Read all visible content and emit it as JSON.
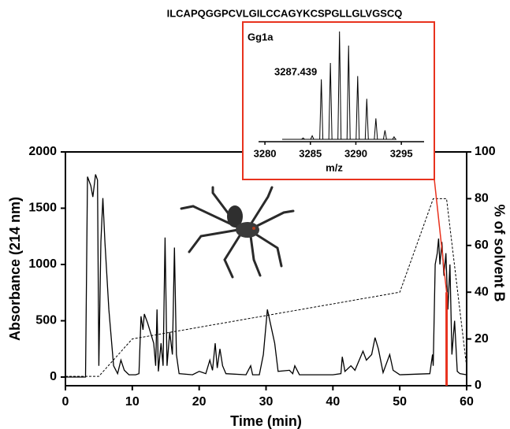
{
  "chart_data": [
    {
      "type": "line",
      "title": "ILCAPQGGPCVLGILCCAGYKCSPGLLGLVGSCQ",
      "x_label": "Time (min)",
      "y_label": "Absorbance (214 nm)",
      "y2_label": "% of solvent B",
      "xlim": [
        0,
        60
      ],
      "xticks": [
        0,
        10,
        20,
        30,
        40,
        50,
        60
      ],
      "ylim": [
        -77,
        2000
      ],
      "yticks": [
        0,
        500,
        1000,
        1500,
        2000
      ],
      "y2lim": [
        0,
        100
      ],
      "y2ticks": [
        0,
        20,
        40,
        60,
        80,
        100
      ],
      "highlight_x": 57,
      "highlight_color": "#e8321e",
      "series": [
        {
          "color": "#000000",
          "dashed": false,
          "x": [
            0,
            3,
            3.3,
            3.8,
            4.1,
            4.5,
            4.8,
            5.0,
            5.3,
            5.6,
            5.9,
            6.5,
            7.2,
            7.8,
            8.3,
            8.8,
            9.5,
            10.5,
            11.0,
            11.3,
            11.6,
            11.8,
            12.3,
            12.8,
            13.2,
            13.5,
            13.7,
            13.9,
            14.3,
            14.6,
            14.9,
            15.2,
            15.6,
            16.0,
            16.3,
            16.6,
            17.0,
            19,
            20,
            21,
            21.6,
            22,
            22.4,
            22.7,
            23.1,
            23.5,
            24,
            27,
            27.7,
            28,
            29,
            29.6,
            30.2,
            31.3,
            31.8,
            33.5,
            34,
            34.3,
            35,
            40,
            41.2,
            41.4,
            41.8,
            42.7,
            43.3,
            44.5,
            45,
            45.8,
            46.3,
            46.8,
            47.5,
            48.5,
            49,
            50,
            54.5,
            54.9,
            55,
            55.3,
            55.6,
            55.8,
            56,
            56.3,
            56.6,
            56.9,
            57.2,
            57.5,
            57.8,
            58.2,
            58.6,
            59,
            60
          ],
          "y": [
            0,
            0,
            1780,
            1700,
            1600,
            1800,
            1750,
            100,
            1200,
            1590,
            1200,
            600,
            100,
            30,
            150,
            60,
            20,
            20,
            30,
            540,
            420,
            560,
            480,
            380,
            300,
            100,
            600,
            50,
            300,
            100,
            1240,
            100,
            400,
            200,
            1150,
            200,
            30,
            20,
            50,
            30,
            150,
            60,
            300,
            80,
            250,
            100,
            30,
            20,
            100,
            20,
            20,
            200,
            600,
            300,
            50,
            60,
            30,
            100,
            20,
            20,
            30,
            180,
            50,
            100,
            60,
            230,
            150,
            200,
            350,
            250,
            40,
            200,
            60,
            20,
            30,
            200,
            100,
            1000,
            1100,
            1230,
            1000,
            1200,
            900,
            1100,
            600,
            1000,
            200,
            500,
            50,
            30,
            20
          ]
        },
        {
          "color": "#000000",
          "dashed": true,
          "axis": "y2",
          "x": [
            0,
            5,
            10,
            50,
            55,
            57,
            60
          ],
          "y": [
            4,
            4,
            20,
            40,
            80,
            80,
            8
          ]
        }
      ]
    },
    {
      "type": "spectrum",
      "title": "Gg1a",
      "annotation": "3287.439",
      "x_label": "m/z",
      "border_color": "#e8321e",
      "xlim": [
        3279.3,
        3297.5
      ],
      "xticks": [
        3280,
        3285,
        3290,
        3295
      ],
      "ylim": [
        0,
        100
      ],
      "x": [
        3284.2,
        3285.2,
        3286.2,
        3287.2,
        3288.2,
        3289.2,
        3290.2,
        3291.2,
        3292.2,
        3293.2,
        3294.2
      ],
      "values": [
        2,
        4,
        56,
        71,
        100,
        87,
        59,
        38,
        20,
        9,
        3
      ]
    }
  ]
}
